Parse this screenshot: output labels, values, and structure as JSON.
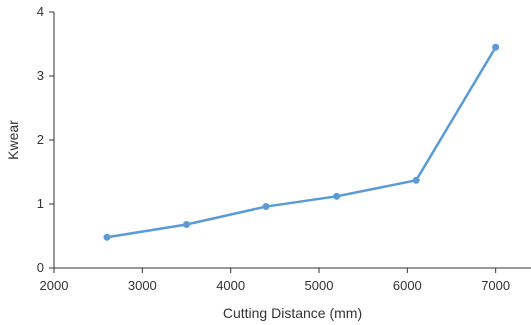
{
  "chart_data": {
    "type": "line",
    "title": "",
    "xlabel": "Cutting Distance (mm)",
    "ylabel": "Kwear",
    "xlim": [
      2000,
      7400
    ],
    "ylim": [
      0,
      4
    ],
    "xticks": [
      2000,
      3000,
      4000,
      5000,
      6000,
      7000
    ],
    "yticks": [
      0,
      1,
      2,
      3,
      4
    ],
    "grid": false,
    "legend": "none",
    "series": [
      {
        "color": "#5B9BD5",
        "x": [
          2600,
          3500,
          4400,
          5200,
          6100,
          7000
        ],
        "y": [
          0.48,
          0.68,
          0.96,
          1.12,
          1.37,
          3.45
        ]
      }
    ]
  }
}
